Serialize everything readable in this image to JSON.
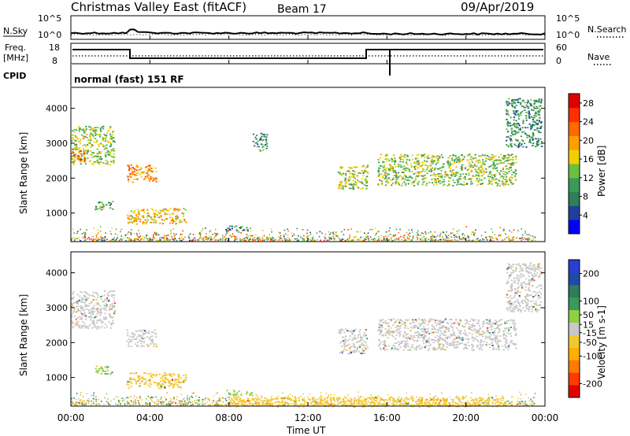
{
  "header": {
    "station": "Christmas Valley East (fitACF)",
    "beam": "Beam 17",
    "date": "09/Apr/2019"
  },
  "left_labels": {
    "nsky": "N.Sky",
    "freq_1": "Freq.",
    "freq_2": "[MHz]",
    "cpid": "CPID"
  },
  "right_labels": {
    "nsearch": "N.Search",
    "nave": "Nave"
  },
  "cpid_text": "normal (fast) 151 RF",
  "noise_ticks": {
    "left": [
      "10^5",
      "10^0"
    ],
    "right": [
      "10^5",
      "10^0"
    ]
  },
  "freq_ticks": {
    "left": [
      "18",
      "8"
    ],
    "right": [
      "60",
      "0"
    ]
  },
  "colors": {
    "power_scale": [
      "#0000ff",
      "#1f3f9c",
      "#2e7d5b",
      "#3a9a58",
      "#6cc040",
      "#f0d000",
      "#ffa000",
      "#ff6a00",
      "#ff3000",
      "#e00000"
    ],
    "velocity_scale": [
      "#e00000",
      "#ff3a00",
      "#ff7a00",
      "#ffb000",
      "#f2c830",
      "#c8c8c8",
      "#8fd040",
      "#3a9a58",
      "#2e7d5b",
      "#1f4aa8",
      "#2a3fd0"
    ]
  },
  "chart_data": [
    {
      "type": "heatmap",
      "panel": "power",
      "xlabel": "Time UT",
      "ylabel": "Slant Range [km]",
      "x_tick_labels": [
        "00:00",
        "04:00",
        "08:00",
        "12:00",
        "16:00",
        "20:00",
        "00:00"
      ],
      "x_range_hours": [
        0,
        24
      ],
      "y_ticks": [
        1000,
        2000,
        3000,
        4000
      ],
      "y_range_km": [
        180,
        4600
      ],
      "colorbar": {
        "label": "Power [dB]",
        "ticks": [
          4,
          8,
          12,
          16,
          20,
          24,
          28
        ],
        "range": [
          0,
          30
        ]
      },
      "echo_regions": [
        {
          "t_start": 0.0,
          "t_end": 2.2,
          "range_km": [
            2400,
            3500
          ],
          "value": 14
        },
        {
          "t_start": 0.0,
          "t_end": 0.7,
          "range_km": [
            2500,
            2800
          ],
          "value": 24
        },
        {
          "t_start": 2.8,
          "t_end": 4.3,
          "range_km": [
            1900,
            2400
          ],
          "value": 20
        },
        {
          "t_start": 1.2,
          "t_end": 2.1,
          "range_km": [
            1100,
            1350
          ],
          "value": 11
        },
        {
          "t_start": 2.8,
          "t_end": 5.8,
          "range_km": [
            700,
            1150
          ],
          "value": 18
        },
        {
          "t_start": 9.2,
          "t_end": 9.9,
          "range_km": [
            2800,
            3300
          ],
          "value": 9
        },
        {
          "t_start": 7.8,
          "t_end": 9.2,
          "range_km": [
            500,
            650
          ],
          "value": 8
        },
        {
          "t_start": 13.5,
          "t_end": 15.0,
          "range_km": [
            1700,
            2400
          ],
          "value": 14
        },
        {
          "t_start": 15.5,
          "t_end": 22.5,
          "range_km": [
            1800,
            2700
          ],
          "value": 14
        },
        {
          "t_start": 22.0,
          "t_end": 23.8,
          "range_km": [
            2900,
            4300
          ],
          "value": 9
        }
      ]
    },
    {
      "type": "heatmap",
      "panel": "velocity",
      "xlabel": "Time UT",
      "ylabel": "Slant Range [km]",
      "x_tick_labels": [
        "00:00",
        "04:00",
        "08:00",
        "12:00",
        "16:00",
        "20:00",
        "00:00"
      ],
      "x_range_hours": [
        0,
        24
      ],
      "y_ticks": [
        1000,
        2000,
        3000,
        4000
      ],
      "y_range_km": [
        180,
        4600
      ],
      "colorbar": {
        "label": "Velocity [m s-1]",
        "ticks": [
          200,
          100,
          50,
          15,
          -15,
          -50,
          -100,
          -200
        ],
        "range": [
          -250,
          250
        ]
      },
      "echo_regions": [
        {
          "t_start": 0.0,
          "t_end": 2.2,
          "range_km": [
            2400,
            3500
          ],
          "value": 0
        },
        {
          "t_start": 2.8,
          "t_end": 4.3,
          "range_km": [
            1900,
            2400
          ],
          "value": 0
        },
        {
          "t_start": 1.2,
          "t_end": 2.1,
          "range_km": [
            1100,
            1350
          ],
          "value": 60
        },
        {
          "t_start": 2.8,
          "t_end": 5.8,
          "range_km": [
            700,
            1150
          ],
          "value": -40
        },
        {
          "t_start": 7.8,
          "t_end": 9.2,
          "range_km": [
            500,
            650
          ],
          "value": 40
        },
        {
          "t_start": 13.5,
          "t_end": 15.0,
          "range_km": [
            1700,
            2400
          ],
          "value": 0
        },
        {
          "t_start": 15.5,
          "t_end": 22.5,
          "range_km": [
            1800,
            2700
          ],
          "value": 0
        },
        {
          "t_start": 22.0,
          "t_end": 23.8,
          "range_km": [
            2900,
            4300
          ],
          "value": 0
        },
        {
          "t_start": 8.0,
          "t_end": 22.0,
          "range_km": [
            180,
            450
          ],
          "value": -60
        }
      ]
    }
  ]
}
